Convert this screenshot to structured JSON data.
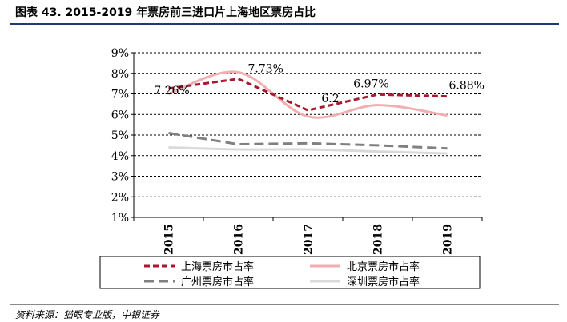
{
  "page": {
    "title": "图表 43. 2015-2019 年票房前三进口片上海地区票房占比",
    "source": "资料来源：猫眼专业版，中银证券"
  },
  "chart_data": {
    "type": "line",
    "title": "",
    "xlabel": "",
    "ylabel": "",
    "x": [
      "2015",
      "2016",
      "2017",
      "2018",
      "2019"
    ],
    "ylim": [
      1,
      9
    ],
    "yticks": [
      "1%",
      "2%",
      "3%",
      "4%",
      "5%",
      "6%",
      "7%",
      "8%",
      "9%"
    ],
    "grid": "dashed horizontal",
    "legend_position": "bottom",
    "series": [
      {
        "name": "上海票房市占率",
        "values": [
          7.26,
          7.73,
          6.2,
          6.97,
          6.88
        ],
        "labels": [
          "7.26%",
          "7.73%",
          "6.2",
          "6.97%",
          "6.88%"
        ],
        "color": "#a6192e",
        "style": "dashed",
        "smooth": false
      },
      {
        "name": "北京票房市占率",
        "values": [
          7.0,
          8.05,
          5.9,
          6.45,
          5.95
        ],
        "color": "#f2aeb0",
        "style": "solid",
        "smooth": true
      },
      {
        "name": "广州票房市占率",
        "values": [
          5.1,
          4.55,
          4.6,
          4.5,
          4.35
        ],
        "color": "#808080",
        "style": "dashed",
        "smooth": false
      },
      {
        "name": "深圳票房市占率",
        "values": [
          4.4,
          4.3,
          4.3,
          4.2,
          4.1
        ],
        "color": "#d9d9d9",
        "style": "solid",
        "smooth": true
      }
    ]
  }
}
